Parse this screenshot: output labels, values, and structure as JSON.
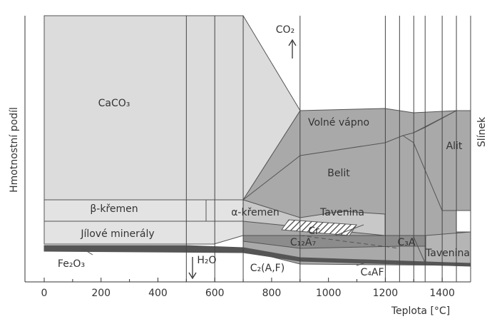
{
  "chart_data": {
    "type": "phase",
    "xlabel": "Teplota [°C]",
    "ylabel": "Hmotnostní podíl",
    "right_label": "Slínek",
    "xlim": [
      0,
      1500
    ],
    "xticks": [
      0,
      200,
      400,
      600,
      800,
      1000,
      1200,
      1400
    ],
    "boundaries": [
      500,
      600,
      700,
      900,
      1200,
      1250,
      1300,
      1340,
      1400,
      1450,
      1500
    ],
    "labels": [
      "CaCO₃",
      "CO₂",
      "Volné vápno",
      "Belit",
      "Alit",
      "β-křemen",
      "α-křemen",
      "Tavenina",
      "Cr",
      "Jílové minerály",
      "C₁₂A₇",
      "C₃A",
      "Tavenina",
      "Fe₂O₃",
      "H₂O",
      "C₂(A,F)",
      "C₄AF"
    ]
  }
}
